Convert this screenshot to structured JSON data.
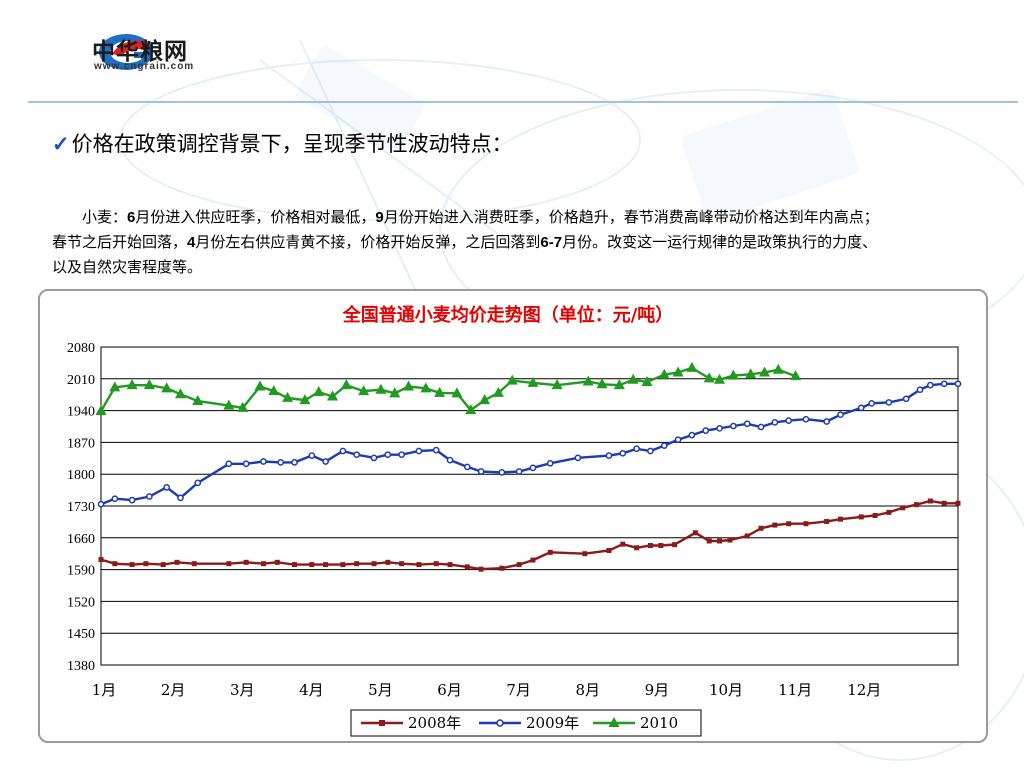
{
  "logo": {
    "name": "中华粮网",
    "url": "www.cngrain.com"
  },
  "heading": "价格在政策调控背景下，呈现季节性波动特点：",
  "paragraph": {
    "p1": "小麦：",
    "n1": "6",
    "p2": "月份进入供应旺季，价格相对最低，",
    "n2": "9",
    "p3": "月份开始进入消费旺季，价格趋升，春节消费高峰带动价格达到年内高点；春节之后开始回落，",
    "n3": "4",
    "p4": "月份左右供应青黄不接，价格开始反弹，之后回落到",
    "n4": "6-7",
    "p5": "月份。改变这一运行规律的是政策执行的力度、以及自然灾害程度等。"
  },
  "colors": {
    "accent": "#1b4fb5",
    "title_red": "#e60000"
  },
  "chart_data": {
    "type": "line",
    "title": "全国普通小麦均价走势图（单位：元/吨）",
    "xlabel": "",
    "ylabel": "",
    "ylim": [
      1380,
      2080
    ],
    "y_ticks": [
      2080,
      2010,
      1940,
      1870,
      1800,
      1730,
      1660,
      1590,
      1520,
      1450,
      1380
    ],
    "x_tick_labels": [
      "1月",
      "2月",
      "3月",
      "4月",
      "5月",
      "6月",
      "7月",
      "8月",
      "9月",
      "10月",
      "11月",
      "12月"
    ],
    "xlim": [
      0,
      12.4
    ],
    "grid": true,
    "legend": "bottom",
    "series": [
      {
        "name": "2008年",
        "color": "#8b1a1a",
        "marker": "square",
        "x": [
          0,
          0.2,
          0.45,
          0.65,
          0.9,
          1.1,
          1.35,
          1.85,
          2.1,
          2.35,
          2.55,
          2.8,
          3.05,
          3.25,
          3.5,
          3.7,
          3.95,
          4.15,
          4.35,
          4.6,
          4.85,
          5.05,
          5.3,
          5.5,
          5.8,
          6.05,
          6.25,
          6.5,
          7.0,
          7.35,
          7.55,
          7.75,
          7.95,
          8.1,
          8.3,
          8.6,
          8.8,
          8.95,
          9.1,
          9.35,
          9.55,
          9.75,
          9.95,
          10.2,
          10.5,
          10.7,
          11.0,
          11.2,
          11.4,
          11.6,
          11.8,
          12.0,
          12.2,
          12.4
        ],
        "values": [
          1612,
          1603,
          1601,
          1603,
          1601,
          1606,
          1603,
          1603,
          1606,
          1603,
          1606,
          1601,
          1601,
          1601,
          1601,
          1603,
          1603,
          1606,
          1603,
          1601,
          1603,
          1601,
          1596,
          1591,
          1593,
          1601,
          1611,
          1628,
          1625,
          1632,
          1646,
          1638,
          1643,
          1643,
          1645,
          1671,
          1653,
          1653,
          1655,
          1664,
          1681,
          1688,
          1691,
          1691,
          1696,
          1701,
          1706,
          1709,
          1716,
          1726,
          1733,
          1741,
          1736,
          1736
        ]
      },
      {
        "name": "2009年",
        "color": "#1a3bb5",
        "marker": "circle",
        "x": [
          0,
          0.2,
          0.45,
          0.7,
          0.95,
          1.15,
          1.4,
          1.85,
          2.1,
          2.35,
          2.6,
          2.8,
          3.05,
          3.25,
          3.5,
          3.7,
          3.95,
          4.15,
          4.35,
          4.6,
          4.85,
          5.05,
          5.3,
          5.5,
          5.8,
          6.05,
          6.25,
          6.5,
          6.9,
          7.35,
          7.55,
          7.75,
          7.95,
          8.15,
          8.35,
          8.55,
          8.75,
          8.95,
          9.15,
          9.35,
          9.55,
          9.75,
          9.95,
          10.2,
          10.5,
          10.7,
          11.0,
          11.15,
          11.4,
          11.65,
          11.85,
          12.0,
          12.2,
          12.4
        ],
        "values": [
          1734,
          1746,
          1743,
          1751,
          1771,
          1748,
          1781,
          1823,
          1823,
          1828,
          1826,
          1826,
          1841,
          1828,
          1851,
          1843,
          1836,
          1843,
          1843,
          1851,
          1853,
          1831,
          1816,
          1806,
          1804,
          1806,
          1814,
          1824,
          1836,
          1841,
          1846,
          1856,
          1851,
          1863,
          1876,
          1886,
          1896,
          1901,
          1906,
          1911,
          1904,
          1914,
          1918,
          1921,
          1916,
          1931,
          1946,
          1956,
          1958,
          1966,
          1986,
          1996,
          1999,
          1999
        ]
      },
      {
        "name": "2010",
        "color": "#229a22",
        "marker": "triangle",
        "x": [
          0,
          0.2,
          0.45,
          0.7,
          0.95,
          1.15,
          1.4,
          1.85,
          2.05,
          2.3,
          2.5,
          2.7,
          2.95,
          3.15,
          3.35,
          3.55,
          3.8,
          4.05,
          4.25,
          4.45,
          4.7,
          4.9,
          5.15,
          5.35,
          5.55,
          5.75,
          5.95,
          6.25,
          6.6,
          7.05,
          7.25,
          7.5,
          7.7,
          7.9,
          8.15,
          8.35,
          8.55,
          8.8,
          8.95,
          9.15,
          9.4,
          9.6,
          9.8,
          10.05
        ],
        "values": [
          1939,
          1991,
          1996,
          1996,
          1989,
          1976,
          1961,
          1951,
          1946,
          1993,
          1983,
          1968,
          1963,
          1981,
          1971,
          1996,
          1983,
          1986,
          1978,
          1993,
          1989,
          1979,
          1978,
          1941,
          1963,
          1979,
          2006,
          2001,
          1996,
          2004,
          1998,
          1996,
          2008,
          2003,
          2019,
          2024,
          2034,
          2011,
          2008,
          2017,
          2020,
          2024,
          2030,
          2016
        ]
      }
    ]
  }
}
